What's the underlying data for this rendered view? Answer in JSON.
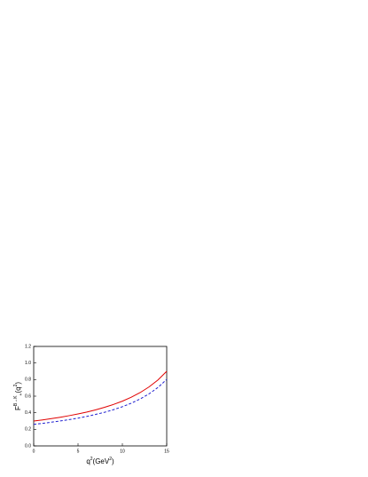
{
  "chart_data": {
    "type": "line",
    "xlabel_parts": [
      "q",
      "2",
      "(GeV",
      "2",
      ")"
    ],
    "ylabel_parts": [
      "F",
      "B→K",
      "+",
      "(q",
      "2",
      ")"
    ],
    "x": [
      0,
      1,
      2,
      3,
      4,
      5,
      6,
      7,
      8,
      9,
      10,
      11,
      12,
      13,
      14,
      15
    ],
    "series": [
      {
        "color": "#e00000",
        "dash": false,
        "values": [
          0.3,
          0.314,
          0.329,
          0.346,
          0.365,
          0.386,
          0.409,
          0.435,
          0.466,
          0.5,
          0.54,
          0.587,
          0.643,
          0.711,
          0.794,
          0.9
        ]
      },
      {
        "color": "#2020d0",
        "dash": true,
        "values": [
          0.26,
          0.272,
          0.286,
          0.301,
          0.317,
          0.335,
          0.356,
          0.38,
          0.406,
          0.437,
          0.473,
          0.515,
          0.566,
          0.627,
          0.704,
          0.802
        ]
      }
    ],
    "xlim": [
      0,
      15
    ],
    "xticks": [
      0,
      5,
      10,
      15
    ],
    "ylim": [
      0,
      1.2
    ],
    "yticks": [
      {
        "value": 0,
        "label": "0.0"
      },
      {
        "value": 0.2,
        "label": "0.2"
      },
      {
        "value": 0.4,
        "label": "0.4"
      },
      {
        "value": 0.6,
        "label": "0.6"
      },
      {
        "value": 0.8,
        "label": "0.8"
      },
      {
        "value": 1.0,
        "label": "1.0"
      },
      {
        "value": 1.2,
        "label": "1.2"
      }
    ]
  }
}
